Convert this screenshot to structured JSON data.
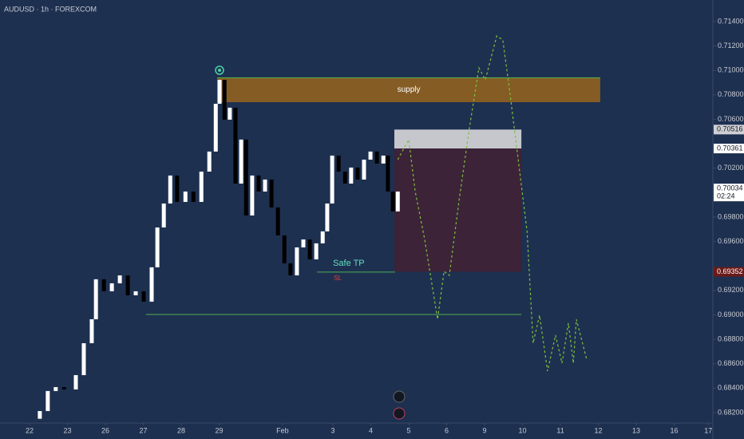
{
  "chart_data": {
    "type": "candlestick",
    "title": "AUDUSD · 1h · FOREXCOM",
    "background": "#1e3050",
    "up_color": "#ffffff",
    "down_color": "#000000",
    "xlim": [
      -0.78,
      18.02
    ],
    "ylim": [
      0.68115,
      0.71576
    ],
    "xticks": [
      {
        "value": 0,
        "label": "22"
      },
      {
        "value": 1,
        "label": "23"
      },
      {
        "value": 2,
        "label": "26"
      },
      {
        "value": 3,
        "label": "27"
      },
      {
        "value": 4,
        "label": "28"
      },
      {
        "value": 5,
        "label": "29"
      },
      {
        "value": 6.67,
        "label": "Feb"
      },
      {
        "value": 8,
        "label": "3"
      },
      {
        "value": 9,
        "label": "4"
      },
      {
        "value": 10,
        "label": "5"
      },
      {
        "value": 11,
        "label": "6"
      },
      {
        "value": 12,
        "label": "9"
      },
      {
        "value": 13,
        "label": "10"
      },
      {
        "value": 14,
        "label": "11"
      },
      {
        "value": 15,
        "label": "12"
      },
      {
        "value": 16,
        "label": "13"
      },
      {
        "value": 17,
        "label": "16"
      },
      {
        "value": 17.9,
        "label": "17"
      }
    ],
    "yticks": [
      {
        "value": 0.714,
        "label": "0.71400"
      },
      {
        "value": 0.712,
        "label": "0.71200"
      },
      {
        "value": 0.71,
        "label": "0.71000"
      },
      {
        "value": 0.708,
        "label": "0.70800"
      },
      {
        "value": 0.706,
        "label": "0.70600"
      },
      {
        "value": 0.702,
        "label": "0.70200"
      },
      {
        "value": 0.698,
        "label": "0.69800"
      },
      {
        "value": 0.696,
        "label": "0.69600"
      },
      {
        "value": 0.692,
        "label": "0.69200"
      },
      {
        "value": 0.69,
        "label": "0.69000"
      },
      {
        "value": 0.688,
        "label": "0.68800"
      },
      {
        "value": 0.686,
        "label": "0.68600"
      },
      {
        "value": 0.684,
        "label": "0.68400"
      },
      {
        "value": 0.682,
        "label": "0.68200"
      }
    ],
    "x": [
      0.27,
      0.48,
      0.69,
      0.91,
      1.22,
      1.43,
      1.64,
      1.75,
      1.96,
      2.17,
      2.38,
      2.59,
      2.8,
      3.01,
      3.22,
      3.37,
      3.54,
      3.71,
      3.89,
      4.11,
      4.32,
      4.53,
      4.74,
      4.91,
      5.01,
      5.14,
      5.28,
      5.43,
      5.58,
      5.71,
      5.87,
      6.04,
      6.21,
      6.38,
      6.55,
      6.72,
      6.88,
      7.05,
      7.22,
      7.39,
      7.56,
      7.73,
      7.85,
      7.98,
      8.15,
      8.32,
      8.48,
      8.65,
      8.82,
      8.99,
      9.16,
      9.33,
      9.45,
      9.58,
      9.71
    ],
    "open": [
      0.6815,
      0.68213,
      0.68377,
      0.68409,
      0.6839,
      0.68507,
      0.68768,
      0.68964,
      0.69291,
      0.69193,
      0.69258,
      0.69323,
      0.6916,
      0.69193,
      0.69108,
      0.69389,
      0.69715,
      0.69911,
      0.7014,
      0.69924,
      0.70009,
      0.69924,
      0.70172,
      0.70336,
      0.70727,
      0.70923,
      0.70597,
      0.70695,
      0.70074,
      0.70434,
      0.69813,
      0.7014,
      0.70009,
      0.70107,
      0.69879,
      0.6965,
      0.69422,
      0.69323,
      0.69552,
      0.69617,
      0.69454,
      0.69585,
      0.69683,
      0.69911,
      0.70303,
      0.70172,
      0.70074,
      0.70205,
      0.70107,
      0.7027,
      0.70336,
      0.70238,
      0.70303,
      0.70009,
      0.69846
    ],
    "close": [
      0.68213,
      0.68377,
      0.68409,
      0.6839,
      0.68507,
      0.68768,
      0.68964,
      0.69291,
      0.69193,
      0.69258,
      0.69323,
      0.6916,
      0.69193,
      0.69108,
      0.69389,
      0.69715,
      0.69911,
      0.7014,
      0.69924,
      0.70009,
      0.69924,
      0.70172,
      0.70336,
      0.70727,
      0.70923,
      0.70597,
      0.70695,
      0.70074,
      0.70434,
      0.69813,
      0.7014,
      0.70009,
      0.70107,
      0.69879,
      0.6965,
      0.69422,
      0.69323,
      0.69552,
      0.69617,
      0.69454,
      0.69585,
      0.69683,
      0.69911,
      0.70303,
      0.70172,
      0.70074,
      0.70205,
      0.70107,
      0.7027,
      0.70336,
      0.70238,
      0.70303,
      0.70009,
      0.69846,
      0.70009
    ],
    "projection": {
      "color": "#7cc33a",
      "x": [
        9.71,
        10.0,
        10.17,
        10.42,
        10.59,
        10.76,
        10.93,
        11.07,
        11.33,
        11.6,
        11.85,
        12.02,
        12.32,
        12.48,
        12.65,
        12.86,
        13.12,
        13.28,
        13.45,
        13.66,
        13.87,
        14.04,
        14.21,
        14.34,
        14.42,
        14.69
      ],
      "values": [
        0.7027,
        0.70434,
        0.70009,
        0.69617,
        0.69291,
        0.68964,
        0.69356,
        0.69323,
        0.69944,
        0.70531,
        0.71021,
        0.70923,
        0.71282,
        0.7125,
        0.70858,
        0.70336,
        0.69683,
        0.68768,
        0.68997,
        0.6854,
        0.68834,
        0.68605,
        0.68932,
        0.68605,
        0.68964,
        0.68638
      ]
    },
    "zones": [
      {
        "label": "supply",
        "x": [
          4.95,
          15.05
        ],
        "y": [
          0.7074,
          0.70943
        ],
        "color": "#8a5f22"
      },
      {
        "x": [
          9.62,
          12.97
        ],
        "y": [
          0.70361,
          0.70516
        ],
        "color": "#cfd0d4"
      },
      {
        "x": [
          9.62,
          12.97
        ],
        "y": [
          0.69352,
          0.70361
        ],
        "color": "#3e2337"
      }
    ],
    "levels": [
      {
        "label": "Safe TP",
        "sublabel": "SL",
        "value": 0.6935,
        "x": [
          7.58,
          9.64
        ],
        "color": "#4caf50"
      },
      {
        "value": 0.69003,
        "x": [
          3.07,
          12.97
        ],
        "color": "#4caf50"
      }
    ],
    "price_tags": [
      {
        "value": 0.70516,
        "label": "0.70516",
        "bg": "#cfd0d4",
        "fg": "#131722"
      },
      {
        "value": 0.70361,
        "label": "0.70361",
        "bg": "#ffffff",
        "fg": "#131722"
      },
      {
        "value": 0.70034,
        "label": "0.70034",
        "sublabel": "02:24",
        "bg": "#ffffff",
        "fg": "#131722"
      },
      {
        "value": 0.69352,
        "label": "0.69352",
        "bg": "#6b1a1a",
        "fg": "#ffffff"
      }
    ]
  }
}
